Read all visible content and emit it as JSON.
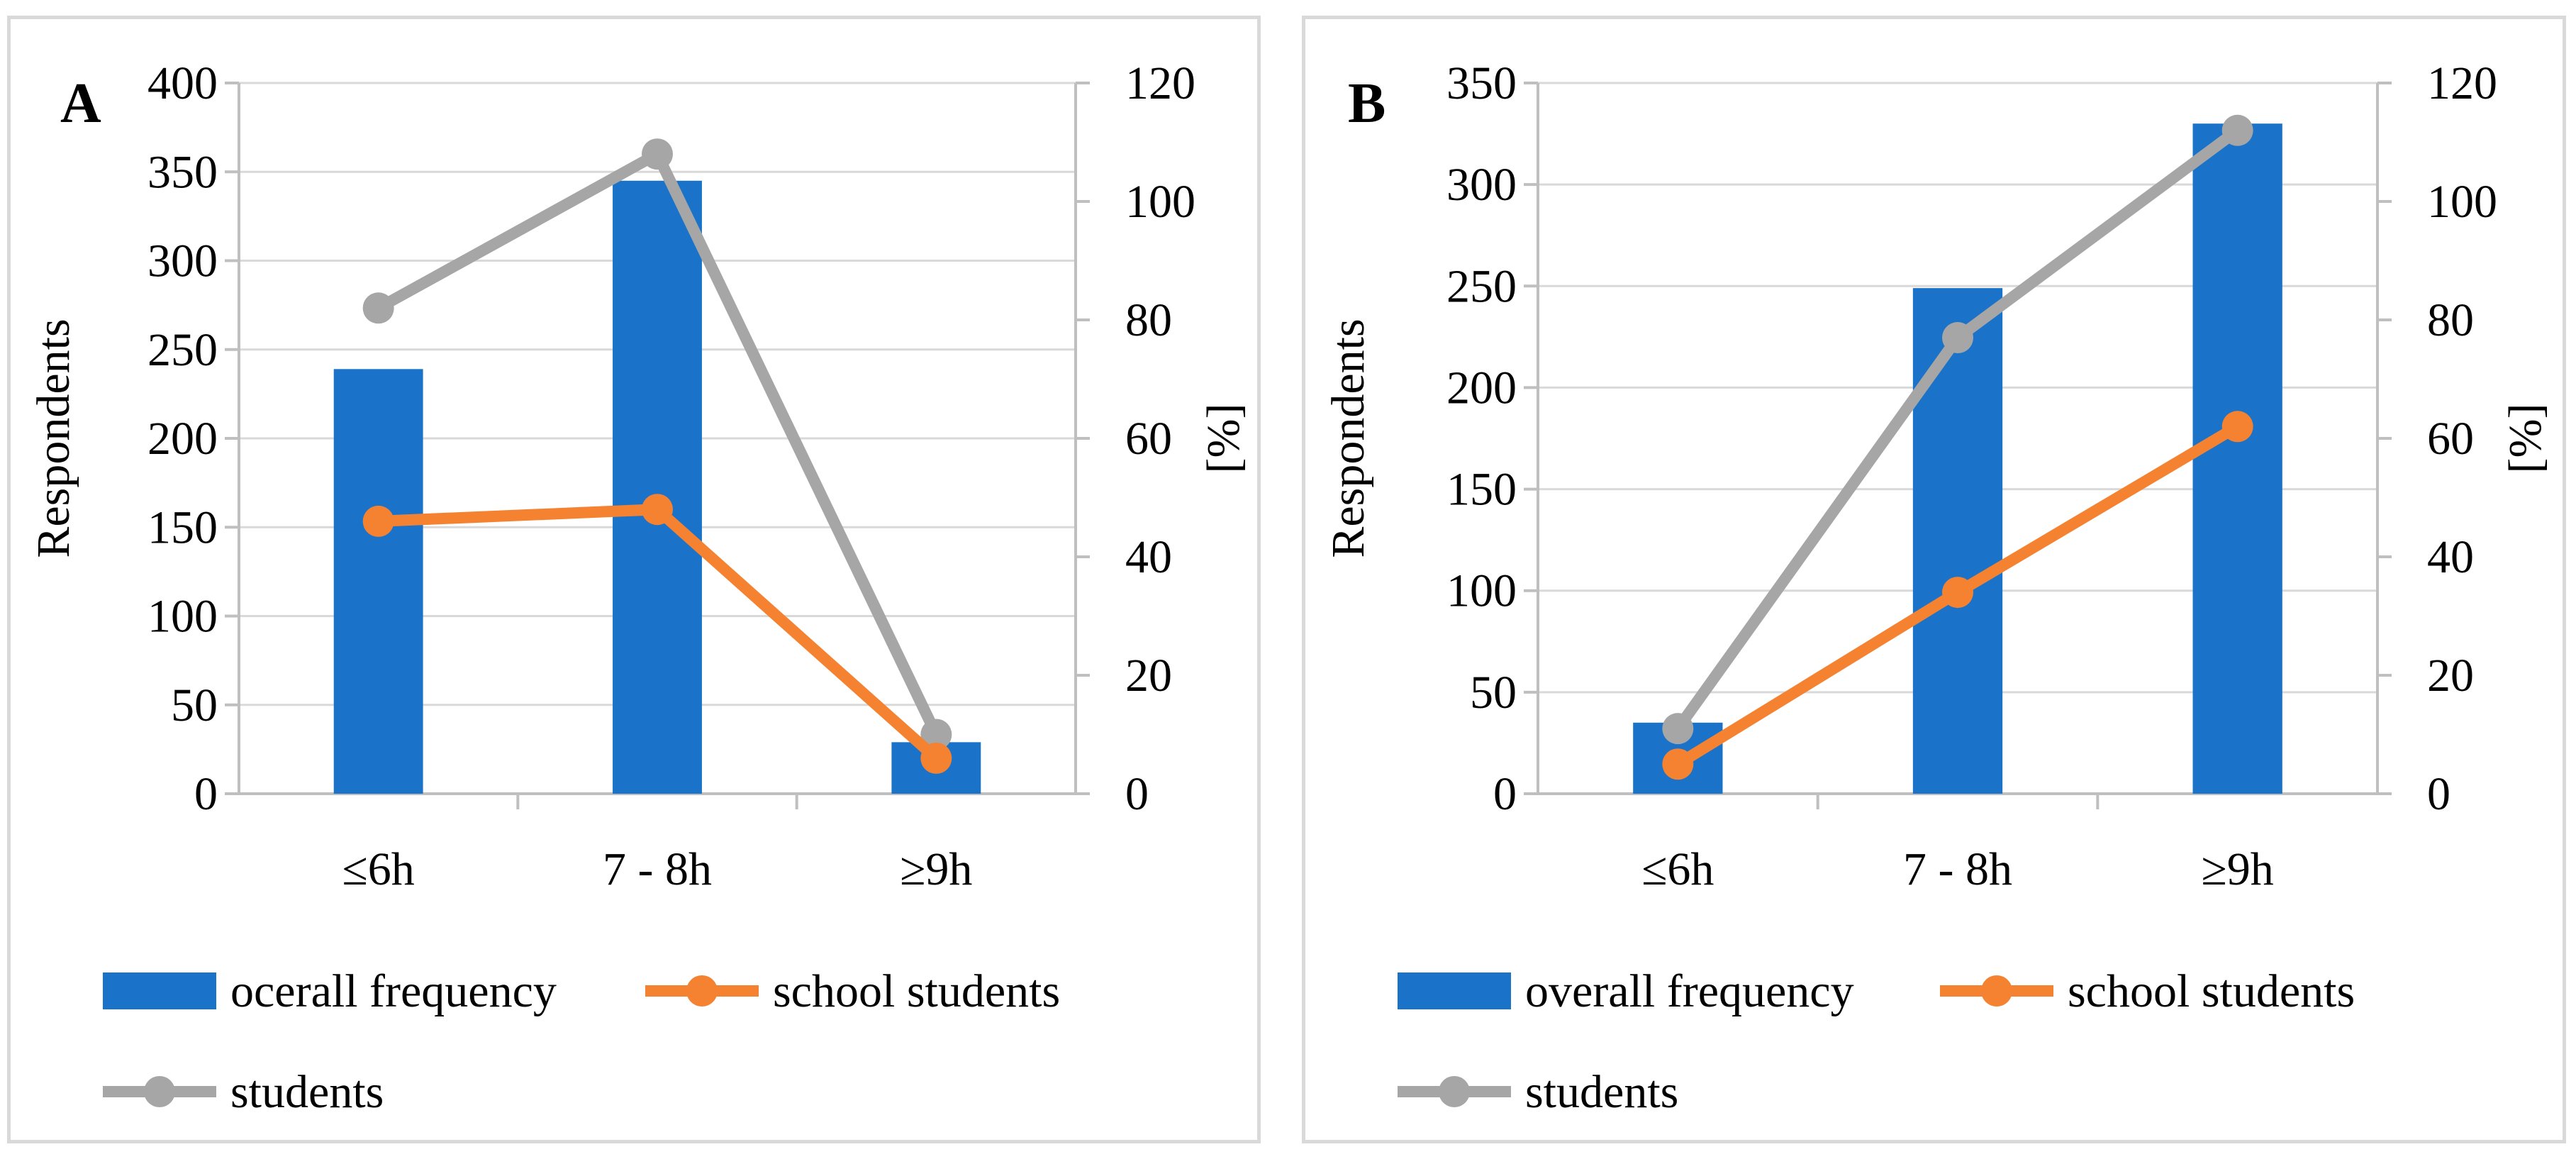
{
  "chart_data": [
    {
      "type": "bar",
      "panel_label": "A",
      "categories": [
        "≤6h",
        "7 - 8h",
        "≥9h"
      ],
      "series": [
        {
          "name": "ocerall frequency",
          "kind": "bar",
          "axis": "left",
          "color": "#1a73c8",
          "values": [
            239,
            345,
            29
          ]
        },
        {
          "name": "school students",
          "kind": "line",
          "axis": "right",
          "color": "#f58231",
          "values": [
            46,
            48,
            6
          ]
        },
        {
          "name": "students",
          "kind": "line",
          "axis": "right",
          "color": "#a6a6a6",
          "values": [
            82,
            108,
            10
          ]
        }
      ],
      "ylabel": "Respondents",
      "y2label": "[%]",
      "ylim": [
        0,
        400
      ],
      "yticks": [
        0,
        50,
        100,
        150,
        200,
        250,
        300,
        350,
        400
      ],
      "y2lim": [
        0,
        120
      ],
      "y2ticks": [
        0,
        20,
        40,
        60,
        80,
        100,
        120
      ],
      "grid": true,
      "legend": "bottom"
    },
    {
      "type": "bar",
      "panel_label": "B",
      "categories": [
        "≤6h",
        "7 - 8h",
        "≥9h"
      ],
      "series": [
        {
          "name": "overall frequency",
          "kind": "bar",
          "axis": "left",
          "color": "#1a73c8",
          "values": [
            35,
            249,
            330
          ]
        },
        {
          "name": "school students",
          "kind": "line",
          "axis": "right",
          "color": "#f58231",
          "values": [
            5,
            34,
            62
          ]
        },
        {
          "name": "students",
          "kind": "line",
          "axis": "right",
          "color": "#a6a6a6",
          "values": [
            11,
            77,
            112
          ]
        }
      ],
      "ylabel": "Respondents",
      "y2label": "[%]",
      "ylim": [
        0,
        350
      ],
      "yticks": [
        0,
        50,
        100,
        150,
        200,
        250,
        300,
        350
      ],
      "y2lim": [
        0,
        120
      ],
      "y2ticks": [
        0,
        20,
        40,
        60,
        80,
        100,
        120
      ],
      "grid": true,
      "legend": "bottom"
    }
  ]
}
